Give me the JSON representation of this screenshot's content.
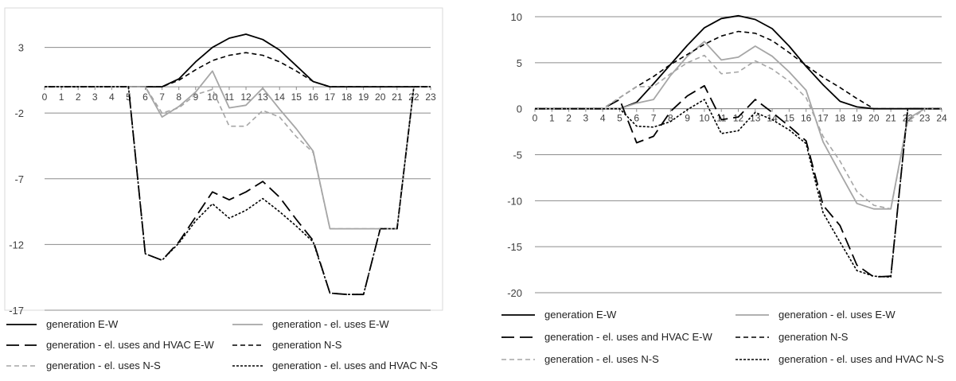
{
  "chart_data": [
    {
      "type": "line",
      "xlim": [
        0,
        23
      ],
      "ylim": [
        -17,
        6
      ],
      "yticks": [
        3,
        -2,
        -7,
        -12,
        -17
      ],
      "x": [
        0,
        1,
        2,
        3,
        4,
        5,
        6,
        7,
        8,
        9,
        10,
        11,
        12,
        13,
        14,
        15,
        16,
        17,
        18,
        19,
        20,
        21,
        22,
        23
      ],
      "grid": true,
      "legend_position": "bottom",
      "series": [
        {
          "name": "generation E-W",
          "style": "solid",
          "color": "#000000",
          "values": [
            0,
            0,
            0,
            0,
            0,
            0,
            0,
            0,
            0.6,
            1.9,
            3.0,
            3.7,
            4.0,
            3.6,
            2.8,
            1.6,
            0.4,
            0,
            0,
            0,
            0,
            0,
            0,
            0
          ]
        },
        {
          "name": "generation - el. uses E-W",
          "style": "solid",
          "color": "#a6a6a6",
          "values": [
            0,
            0,
            0,
            0,
            0,
            0,
            0,
            -2.3,
            -1.5,
            -0.4,
            1.2,
            -1.6,
            -1.4,
            -0.1,
            -1.7,
            -3.2,
            -4.9,
            -10.8,
            -10.8,
            -10.8,
            -10.8,
            -10.8,
            0,
            0
          ]
        },
        {
          "name": "generation - el. uses and HVAC E-W",
          "style": "longdash",
          "color": "#000000",
          "values": [
            0,
            0,
            0,
            0,
            0,
            0,
            -12.7,
            -13.2,
            -11.8,
            -9.9,
            -8.0,
            -8.6,
            -8.0,
            -7.2,
            -8.4,
            -10.1,
            -11.7,
            -15.7,
            -15.8,
            -15.8,
            -10.8,
            -10.8,
            0,
            0
          ]
        },
        {
          "name": "generation N-S",
          "style": "dash",
          "color": "#000000",
          "values": [
            0,
            0,
            0,
            0,
            0,
            0,
            0,
            0,
            0.5,
            1.3,
            2.0,
            2.4,
            2.6,
            2.4,
            1.9,
            1.2,
            0.4,
            0,
            0,
            0,
            0,
            0,
            0,
            0
          ]
        },
        {
          "name": "generation - el. uses N-S",
          "style": "dash",
          "color": "#a6a6a6",
          "values": [
            0,
            0,
            0,
            0,
            0,
            0,
            0,
            -2.0,
            -1.6,
            -0.6,
            -0.2,
            -3.0,
            -3.0,
            -1.8,
            -2.3,
            -3.8,
            -5.0,
            -10.8,
            -10.8,
            -10.8,
            -10.8,
            -10.8,
            0,
            0
          ]
        },
        {
          "name": "generation - el. uses and HVAC N-S",
          "style": "dot",
          "color": "#000000",
          "values": [
            0,
            0,
            0,
            0,
            0,
            0,
            -12.7,
            -13.2,
            -11.9,
            -10.2,
            -8.9,
            -10.0,
            -9.4,
            -8.5,
            -9.5,
            -10.6,
            -11.8,
            -15.7,
            -15.8,
            -15.8,
            -10.8,
            -10.8,
            0,
            0
          ]
        }
      ]
    },
    {
      "type": "line",
      "xlim": [
        0,
        24
      ],
      "ylim": [
        -20,
        10
      ],
      "yticks": [
        10,
        5,
        0,
        -5,
        -10,
        -15,
        -20
      ],
      "x": [
        0,
        1,
        2,
        3,
        4,
        5,
        6,
        7,
        8,
        9,
        10,
        11,
        12,
        13,
        14,
        15,
        16,
        17,
        18,
        19,
        20,
        21,
        22,
        23,
        24
      ],
      "grid": true,
      "legend_position": "bottom",
      "series": [
        {
          "name": "generation E-W",
          "style": "solid",
          "color": "#000000",
          "values": [
            0,
            0,
            0,
            0,
            0,
            0,
            0.7,
            2.7,
            4.8,
            6.9,
            8.8,
            9.8,
            10.1,
            9.7,
            8.7,
            6.8,
            4.6,
            2.6,
            0.8,
            0.2,
            0,
            0,
            0,
            0,
            0
          ]
        },
        {
          "name": "generation - el. uses E-W",
          "style": "solid",
          "color": "#a6a6a6",
          "values": [
            0,
            0,
            0,
            0,
            0,
            0,
            0.6,
            1.0,
            3.6,
            5.7,
            7.3,
            5.3,
            5.6,
            6.8,
            5.7,
            4.0,
            2.0,
            -3.6,
            -7.0,
            -10.3,
            -10.9,
            -10.9,
            -1.1,
            0,
            0
          ]
        },
        {
          "name": "generation - el. uses and HVAC E-W",
          "style": "longdash",
          "color": "#000000",
          "values": [
            0,
            0,
            0,
            0,
            0,
            1.0,
            -3.7,
            -3.0,
            -0.3,
            1.4,
            2.5,
            -1.2,
            -0.9,
            1.0,
            -0.4,
            -1.9,
            -3.5,
            -10.5,
            -12.7,
            -17.0,
            -18.3,
            -18.2,
            0,
            0,
            0
          ]
        },
        {
          "name": "generation N-S",
          "style": "dash",
          "color": "#000000",
          "values": [
            0,
            0,
            0,
            0,
            0,
            1.2,
            2.4,
            3.5,
            4.8,
            5.9,
            7.0,
            7.9,
            8.4,
            8.2,
            7.4,
            6.1,
            4.7,
            3.4,
            2.3,
            1.1,
            0,
            0,
            0,
            0,
            0
          ]
        },
        {
          "name": "generation - el. uses N-S",
          "style": "dash",
          "color": "#a6a6a6",
          "values": [
            0,
            0,
            0,
            0,
            0,
            1.2,
            2.4,
            2.4,
            3.8,
            5.0,
            5.8,
            3.8,
            4.0,
            5.2,
            4.3,
            3.0,
            1.2,
            -3.0,
            -5.7,
            -9.0,
            -10.5,
            -10.9,
            -1.4,
            0,
            0
          ]
        },
        {
          "name": "generation - el. uses and HVAC N-S",
          "style": "dot",
          "color": "#000000",
          "values": [
            0,
            0,
            0,
            0,
            0,
            0,
            -1.9,
            -2.0,
            -1.4,
            -0.1,
            1.0,
            -2.7,
            -2.4,
            -0.4,
            -1.2,
            -2.3,
            -3.8,
            -11.3,
            -14.5,
            -17.6,
            -18.2,
            -18.3,
            0,
            0,
            0
          ]
        }
      ]
    }
  ]
}
